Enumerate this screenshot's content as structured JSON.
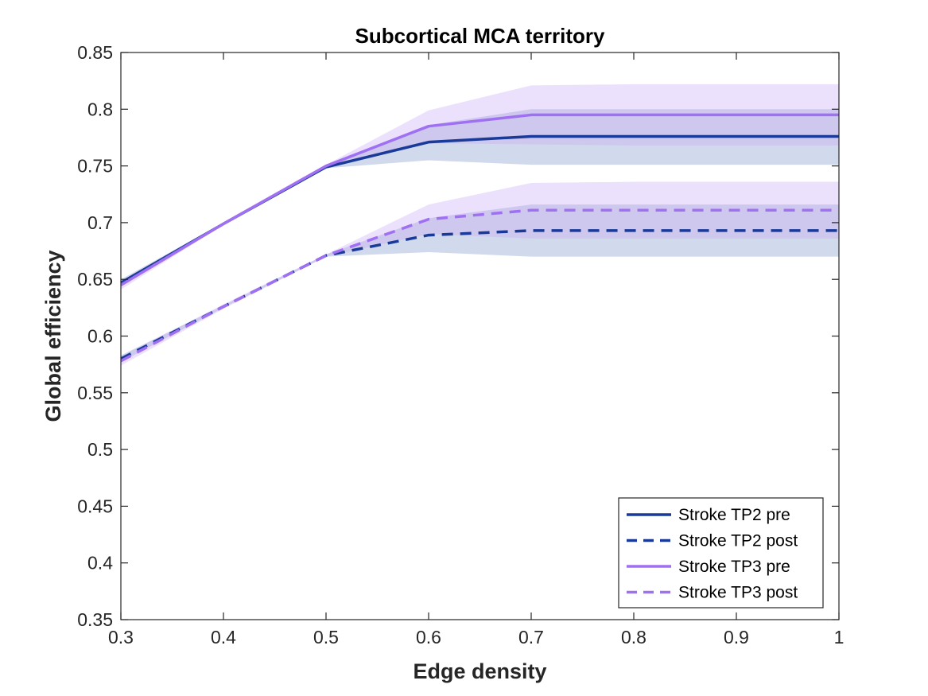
{
  "chart_data": {
    "type": "line",
    "title": "Subcortical MCA territory",
    "xlabel": "Edge density",
    "ylabel": "Global efficiency",
    "xlim": [
      0.3,
      1.0
    ],
    "ylim": [
      0.35,
      0.85
    ],
    "xticks": [
      0.3,
      0.4,
      0.5,
      0.6,
      0.7,
      0.8,
      0.9,
      1.0
    ],
    "xtick_labels": [
      "0.3",
      "0.4",
      "0.5",
      "0.6",
      "0.7",
      "0.8",
      "0.9",
      "1"
    ],
    "yticks": [
      0.35,
      0.4,
      0.45,
      0.5,
      0.55,
      0.6,
      0.65,
      0.7,
      0.75,
      0.8,
      0.85
    ],
    "ytick_labels": [
      "0.35",
      "0.4",
      "0.45",
      "0.5",
      "0.55",
      "0.6",
      "0.65",
      "0.7",
      "0.75",
      "0.8",
      "0.85"
    ],
    "grid": false,
    "legend_position": "bottom-right",
    "x": [
      0.3,
      0.4,
      0.5,
      0.6,
      0.7,
      0.8,
      0.9,
      1.0
    ],
    "series": [
      {
        "name": "Stroke TP2 pre",
        "color": "#1a3a99",
        "line_style": "solid",
        "values": [
          0.647,
          0.699,
          0.749,
          0.771,
          0.776,
          0.776,
          0.776,
          0.776
        ],
        "lower": [
          0.644,
          0.698,
          0.748,
          0.755,
          0.751,
          0.751,
          0.751,
          0.751
        ],
        "upper": [
          0.65,
          0.7,
          0.75,
          0.786,
          0.8,
          0.8,
          0.8,
          0.8
        ],
        "band_color": "#7b93c9"
      },
      {
        "name": "Stroke TP2 post",
        "color": "#1a3a99",
        "line_style": "dashed",
        "values": [
          0.58,
          0.626,
          0.671,
          0.689,
          0.693,
          0.693,
          0.693,
          0.693
        ],
        "lower": [
          0.577,
          0.625,
          0.67,
          0.674,
          0.67,
          0.67,
          0.67,
          0.67
        ],
        "upper": [
          0.583,
          0.627,
          0.672,
          0.704,
          0.716,
          0.716,
          0.716,
          0.716
        ],
        "band_color": "#7b93c9"
      },
      {
        "name": "Stroke TP3 pre",
        "color": "#a070f2",
        "line_style": "solid",
        "values": [
          0.645,
          0.699,
          0.75,
          0.785,
          0.795,
          0.795,
          0.795,
          0.795
        ],
        "lower": [
          0.641,
          0.698,
          0.749,
          0.77,
          0.769,
          0.768,
          0.768,
          0.768
        ],
        "upper": [
          0.648,
          0.7,
          0.751,
          0.799,
          0.821,
          0.822,
          0.822,
          0.822
        ],
        "band_color": "#c9a9f7"
      },
      {
        "name": "Stroke TP3 post",
        "color": "#a070f2",
        "line_style": "dashed",
        "values": [
          0.578,
          0.626,
          0.671,
          0.703,
          0.711,
          0.711,
          0.711,
          0.711
        ],
        "lower": [
          0.574,
          0.624,
          0.67,
          0.69,
          0.686,
          0.686,
          0.686,
          0.686
        ],
        "upper": [
          0.582,
          0.628,
          0.672,
          0.716,
          0.735,
          0.736,
          0.736,
          0.736
        ],
        "band_color": "#c9a9f7"
      }
    ]
  }
}
